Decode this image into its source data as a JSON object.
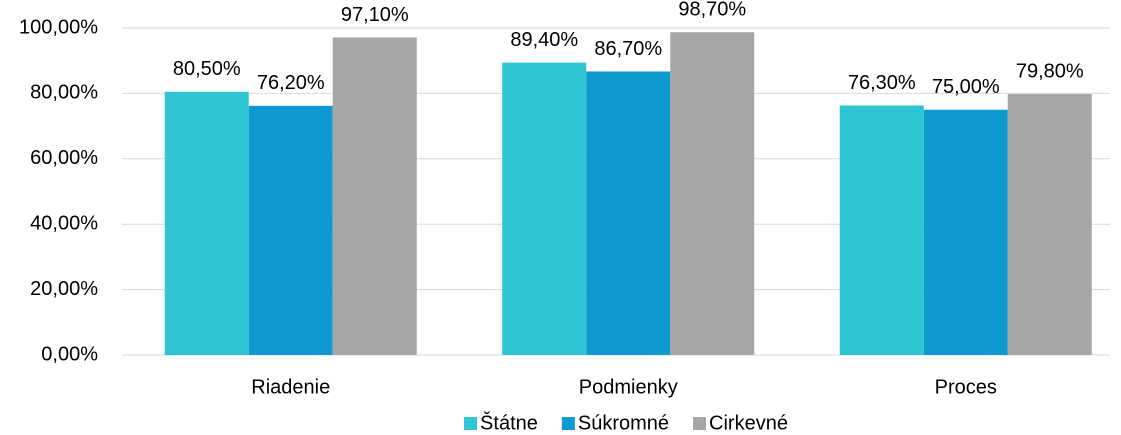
{
  "chart_data": {
    "type": "bar",
    "categories": [
      "Riadenie",
      "Podmienky",
      "Proces"
    ],
    "series": [
      {
        "name": "Štátne",
        "color": "#2ec6d3",
        "values": [
          80.5,
          89.4,
          76.3
        ],
        "value_labels": [
          "80,50%",
          "89,40%",
          "76,30%"
        ]
      },
      {
        "name": "Súkromné",
        "color": "#0e99d0",
        "values": [
          76.2,
          86.7,
          75.0
        ],
        "value_labels": [
          "76,20%",
          "86,70%",
          "75,00%"
        ]
      },
      {
        "name": "Cirkevné",
        "color": "#a6a6a6",
        "values": [
          97.1,
          98.7,
          79.8
        ],
        "value_labels": [
          "97,10%",
          "98,70%",
          "79,80%"
        ]
      }
    ],
    "ylim": [
      0,
      100
    ],
    "yticks": [
      {
        "value": 0,
        "label": "0,00%"
      },
      {
        "value": 20,
        "label": "20,00%"
      },
      {
        "value": 40,
        "label": "40,00%"
      },
      {
        "value": 60,
        "label": "60,00%"
      },
      {
        "value": 80,
        "label": "80,00%"
      },
      {
        "value": 100,
        "label": "100,00%"
      }
    ],
    "grid": true,
    "legend": "bottom"
  }
}
